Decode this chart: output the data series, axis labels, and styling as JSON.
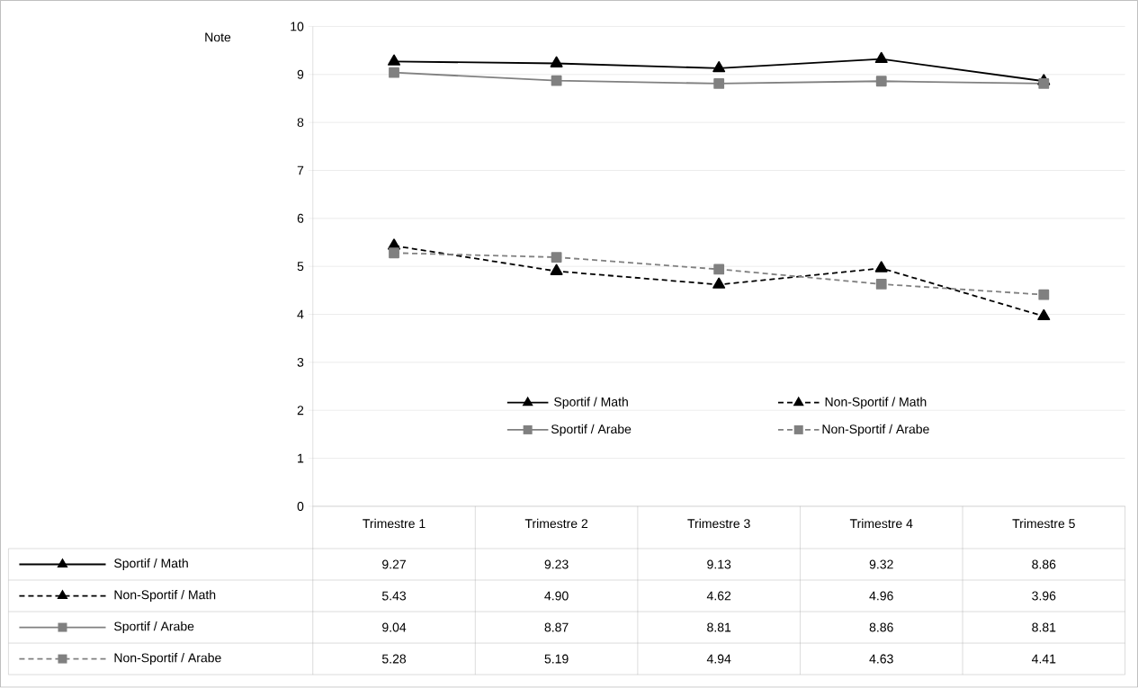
{
  "chart_data": {
    "type": "line",
    "ylabel": "Note",
    "categories": [
      "Trimestre 1",
      "Trimestre 2",
      "Trimestre 3",
      "Trimestre 4",
      "Trimestre 5"
    ],
    "series": [
      {
        "name": "Sportif / Math",
        "color": "#000000",
        "marker": "triangle",
        "line_style": "solid",
        "values": [
          9.27,
          9.23,
          9.13,
          9.32,
          8.86
        ],
        "value_labels": [
          "9.27",
          "9.23",
          "9.13",
          "9.32",
          "8.86"
        ]
      },
      {
        "name": "Non-Sportif / Math",
        "color": "#000000",
        "marker": "triangle",
        "line_style": "dashed",
        "values": [
          5.43,
          4.9,
          4.62,
          4.96,
          3.96
        ],
        "value_labels": [
          "5.43",
          "4.90",
          "4.62",
          "4.96",
          "3.96"
        ]
      },
      {
        "name": "Sportif / Arabe",
        "color": "#808080",
        "marker": "square",
        "line_style": "solid",
        "values": [
          9.04,
          8.87,
          8.81,
          8.86,
          8.81
        ],
        "value_labels": [
          "9.04",
          "8.87",
          "8.81",
          "8.86",
          "8.81"
        ]
      },
      {
        "name": "Non-Sportif / Arabe",
        "color": "#808080",
        "marker": "square",
        "line_style": "dashed",
        "values": [
          5.28,
          5.19,
          4.94,
          4.63,
          4.41
        ],
        "value_labels": [
          "5.28",
          "5.19",
          "4.94",
          "4.63",
          "4.41"
        ]
      }
    ],
    "ylim": [
      0,
      10
    ],
    "yticks": [
      0,
      1,
      2,
      3,
      4,
      5,
      6,
      7,
      8,
      9,
      10
    ],
    "grid": "y",
    "legend": "bottom"
  }
}
